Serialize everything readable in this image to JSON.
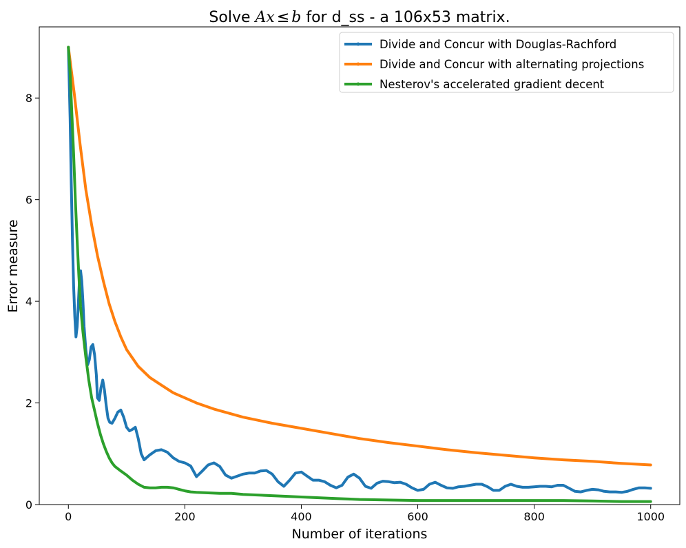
{
  "chart_data": {
    "type": "line",
    "title": {
      "prefix": "Solve ",
      "math_lhs": "Ax",
      "math_op": "≤",
      "math_rhs": "b",
      "suffix": " for d_ss - a 106x53 matrix."
    },
    "xlabel": "Number of iterations",
    "ylabel": "Error measure",
    "xlim": [
      -50,
      1050
    ],
    "ylim": [
      0,
      9.4
    ],
    "xticks": [
      {
        "value": 0,
        "label": "0"
      },
      {
        "value": 200,
        "label": "200"
      },
      {
        "value": 400,
        "label": "400"
      },
      {
        "value": 600,
        "label": "600"
      },
      {
        "value": 800,
        "label": "800"
      },
      {
        "value": 1000,
        "label": "1000"
      }
    ],
    "yticks": [
      {
        "value": 0,
        "label": "0"
      },
      {
        "value": 2,
        "label": "2"
      },
      {
        "value": 4,
        "label": "4"
      },
      {
        "value": 6,
        "label": "6"
      },
      {
        "value": 8,
        "label": "8"
      }
    ],
    "grid": false,
    "legend_position": "top-right",
    "series": [
      {
        "name": "Divide and Concur with Douglas-Rachford",
        "color": "#1f77b4",
        "x": [
          0,
          3,
          5,
          7,
          9,
          11,
          13,
          15,
          17,
          19,
          21,
          23,
          25,
          27,
          30,
          33,
          36,
          39,
          42,
          45,
          48,
          50,
          53,
          56,
          59,
          62,
          65,
          68,
          71,
          75,
          80,
          85,
          90,
          95,
          100,
          105,
          110,
          115,
          120,
          125,
          130,
          140,
          150,
          160,
          170,
          180,
          190,
          200,
          210,
          220,
          230,
          240,
          250,
          260,
          270,
          280,
          290,
          300,
          310,
          320,
          330,
          340,
          350,
          360,
          370,
          380,
          390,
          400,
          410,
          420,
          430,
          440,
          450,
          460,
          470,
          480,
          490,
          500,
          510,
          520,
          530,
          540,
          550,
          560,
          570,
          580,
          590,
          600,
          610,
          620,
          630,
          640,
          650,
          660,
          670,
          680,
          690,
          700,
          710,
          720,
          730,
          740,
          750,
          760,
          770,
          780,
          790,
          800,
          810,
          820,
          830,
          840,
          850,
          860,
          870,
          880,
          890,
          900,
          910,
          920,
          930,
          940,
          950,
          960,
          970,
          980,
          990,
          1000
        ],
        "y": [
          9.0,
          7.6,
          6.3,
          5.2,
          4.3,
          3.7,
          3.3,
          3.5,
          3.9,
          4.4,
          4.6,
          4.4,
          4.0,
          3.5,
          3.05,
          2.75,
          2.85,
          3.1,
          3.15,
          2.95,
          2.55,
          2.1,
          2.05,
          2.3,
          2.45,
          2.25,
          1.95,
          1.7,
          1.62,
          1.6,
          1.7,
          1.82,
          1.86,
          1.72,
          1.52,
          1.45,
          1.48,
          1.52,
          1.3,
          1.0,
          0.88,
          0.98,
          1.06,
          1.08,
          1.03,
          0.92,
          0.85,
          0.82,
          0.76,
          0.55,
          0.66,
          0.78,
          0.82,
          0.75,
          0.58,
          0.52,
          0.56,
          0.6,
          0.62,
          0.62,
          0.66,
          0.67,
          0.6,
          0.45,
          0.36,
          0.48,
          0.62,
          0.64,
          0.56,
          0.48,
          0.48,
          0.45,
          0.38,
          0.33,
          0.38,
          0.54,
          0.6,
          0.52,
          0.36,
          0.32,
          0.42,
          0.46,
          0.45,
          0.43,
          0.44,
          0.4,
          0.33,
          0.28,
          0.3,
          0.4,
          0.44,
          0.38,
          0.33,
          0.32,
          0.35,
          0.36,
          0.38,
          0.4,
          0.4,
          0.35,
          0.28,
          0.28,
          0.36,
          0.4,
          0.36,
          0.34,
          0.34,
          0.35,
          0.36,
          0.36,
          0.35,
          0.38,
          0.38,
          0.32,
          0.26,
          0.25,
          0.28,
          0.3,
          0.29,
          0.26,
          0.25,
          0.25,
          0.24,
          0.26,
          0.3,
          0.33,
          0.33,
          0.32
        ]
      },
      {
        "name": "Divide and Concur with alternating projections",
        "color": "#ff7f0e",
        "x": [
          0,
          10,
          20,
          30,
          40,
          50,
          60,
          70,
          80,
          90,
          100,
          120,
          140,
          160,
          180,
          200,
          220,
          250,
          300,
          350,
          400,
          450,
          500,
          550,
          600,
          650,
          700,
          750,
          800,
          850,
          900,
          950,
          1000
        ],
        "y": [
          9.0,
          8.1,
          7.1,
          6.2,
          5.5,
          4.9,
          4.4,
          3.95,
          3.6,
          3.3,
          3.05,
          2.72,
          2.5,
          2.35,
          2.2,
          2.1,
          2.0,
          1.88,
          1.72,
          1.6,
          1.5,
          1.4,
          1.3,
          1.22,
          1.15,
          1.08,
          1.02,
          0.97,
          0.92,
          0.88,
          0.85,
          0.81,
          0.78
        ]
      },
      {
        "name": "Nesterov's accelerated gradient decent",
        "color": "#2ca02c",
        "x": [
          0,
          3,
          6,
          9,
          12,
          15,
          18,
          21,
          25,
          30,
          35,
          40,
          45,
          50,
          55,
          60,
          65,
          70,
          75,
          80,
          90,
          100,
          110,
          120,
          130,
          140,
          150,
          160,
          170,
          180,
          190,
          200,
          210,
          220,
          240,
          260,
          280,
          300,
          340,
          380,
          420,
          460,
          500,
          550,
          600,
          650,
          700,
          750,
          800,
          850,
          900,
          950,
          1000
        ],
        "y": [
          9.0,
          8.5,
          7.7,
          6.9,
          6.0,
          5.2,
          4.5,
          3.9,
          3.4,
          2.9,
          2.45,
          2.1,
          1.85,
          1.6,
          1.38,
          1.2,
          1.05,
          0.92,
          0.82,
          0.75,
          0.66,
          0.58,
          0.48,
          0.4,
          0.34,
          0.33,
          0.33,
          0.34,
          0.34,
          0.33,
          0.3,
          0.27,
          0.25,
          0.24,
          0.23,
          0.22,
          0.22,
          0.2,
          0.18,
          0.16,
          0.14,
          0.12,
          0.1,
          0.09,
          0.08,
          0.08,
          0.08,
          0.08,
          0.08,
          0.08,
          0.07,
          0.06,
          0.06
        ]
      }
    ]
  }
}
